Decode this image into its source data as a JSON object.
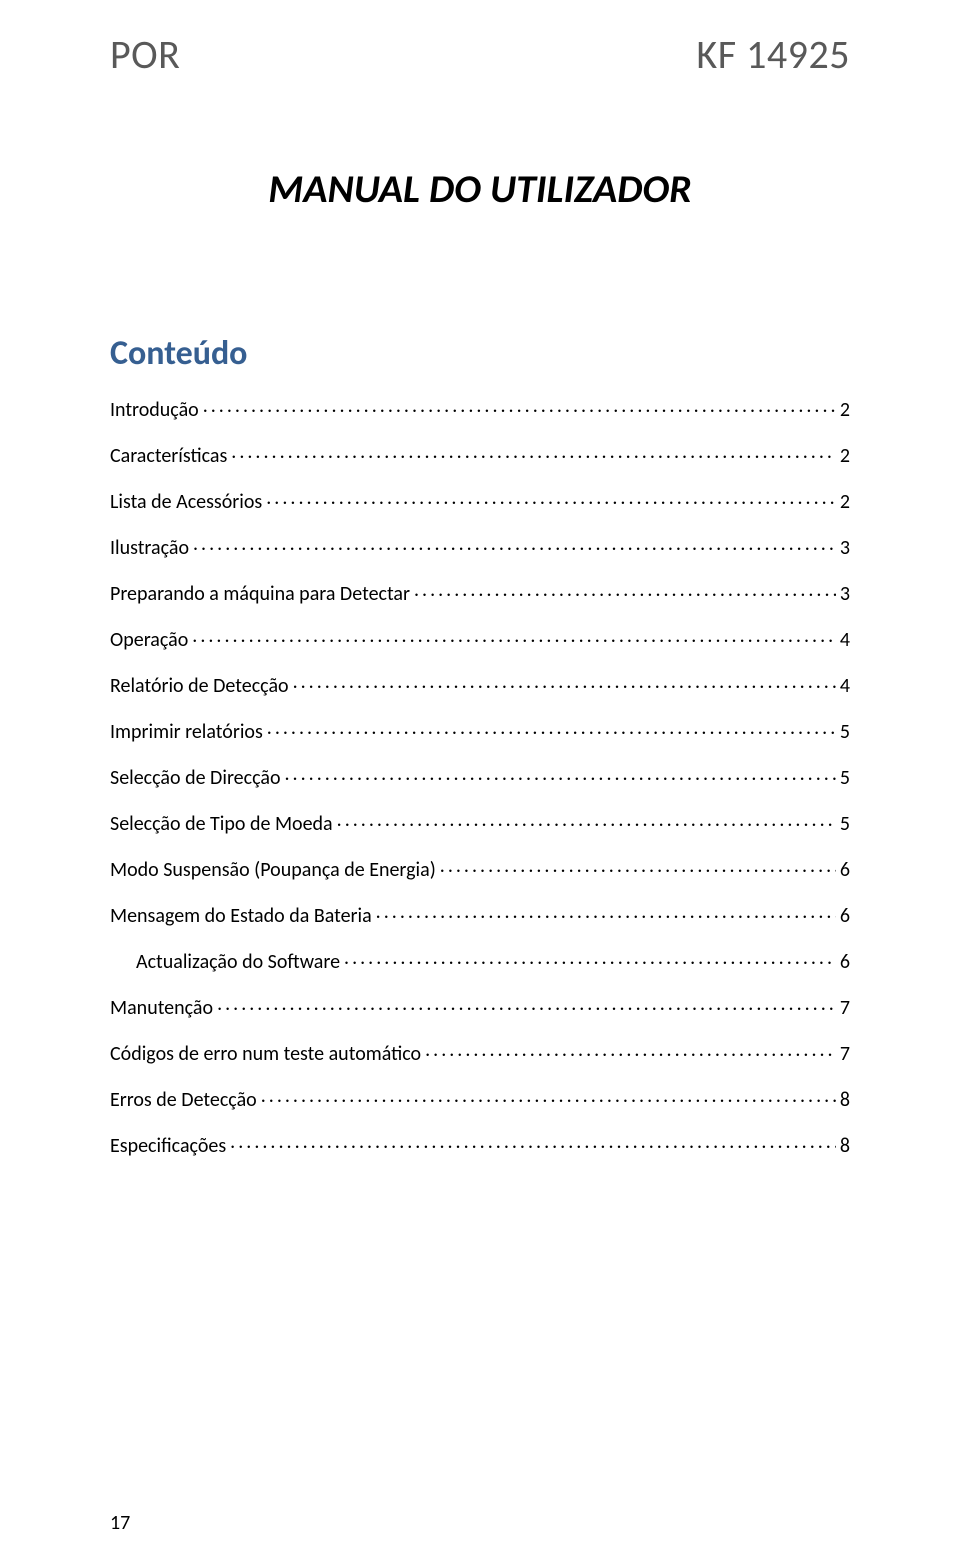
{
  "header": {
    "left": "POR",
    "right": "KF 14925"
  },
  "title": "MANUAL DO UTILIZADOR",
  "toc_heading": "Conteúdo",
  "toc": [
    {
      "label": "Introdução",
      "page": "2",
      "indent": false
    },
    {
      "label": "Características",
      "page": "2",
      "indent": false
    },
    {
      "label": "Lista de Acessórios",
      "page": "2",
      "indent": false
    },
    {
      "label": "Ilustração",
      "page": "3",
      "indent": false
    },
    {
      "label": "Preparando a máquina para Detectar",
      "page": "3",
      "indent": false
    },
    {
      "label": "Operação",
      "page": "4",
      "indent": false
    },
    {
      "label": "Relatório de Detecção",
      "page": "4",
      "indent": false
    },
    {
      "label": "Imprimir relatórios",
      "page": "5",
      "indent": false
    },
    {
      "label": "Selecção de Direcção",
      "page": "5",
      "indent": false
    },
    {
      "label": "Selecção de Tipo de Moeda",
      "page": "5",
      "indent": false
    },
    {
      "label": "Modo Suspensão (Poupança de Energia)",
      "page": "6",
      "indent": false
    },
    {
      "label": "Mensagem do Estado da Bateria",
      "page": "6",
      "indent": false
    },
    {
      "label": "Actualização do Software",
      "page": "6",
      "indent": true
    },
    {
      "label": "Manutenção",
      "page": "7",
      "indent": false
    },
    {
      "label": "Códigos de erro num teste automático",
      "page": "7",
      "indent": false
    },
    {
      "label": "Erros de Detecção",
      "page": "8",
      "indent": false
    },
    {
      "label": "Especificações",
      "page": "8",
      "indent": false
    }
  ],
  "page_number": "17",
  "colors": {
    "header_text": "#595959",
    "heading": "#365f91",
    "body_text": "#000000",
    "background": "#ffffff"
  }
}
